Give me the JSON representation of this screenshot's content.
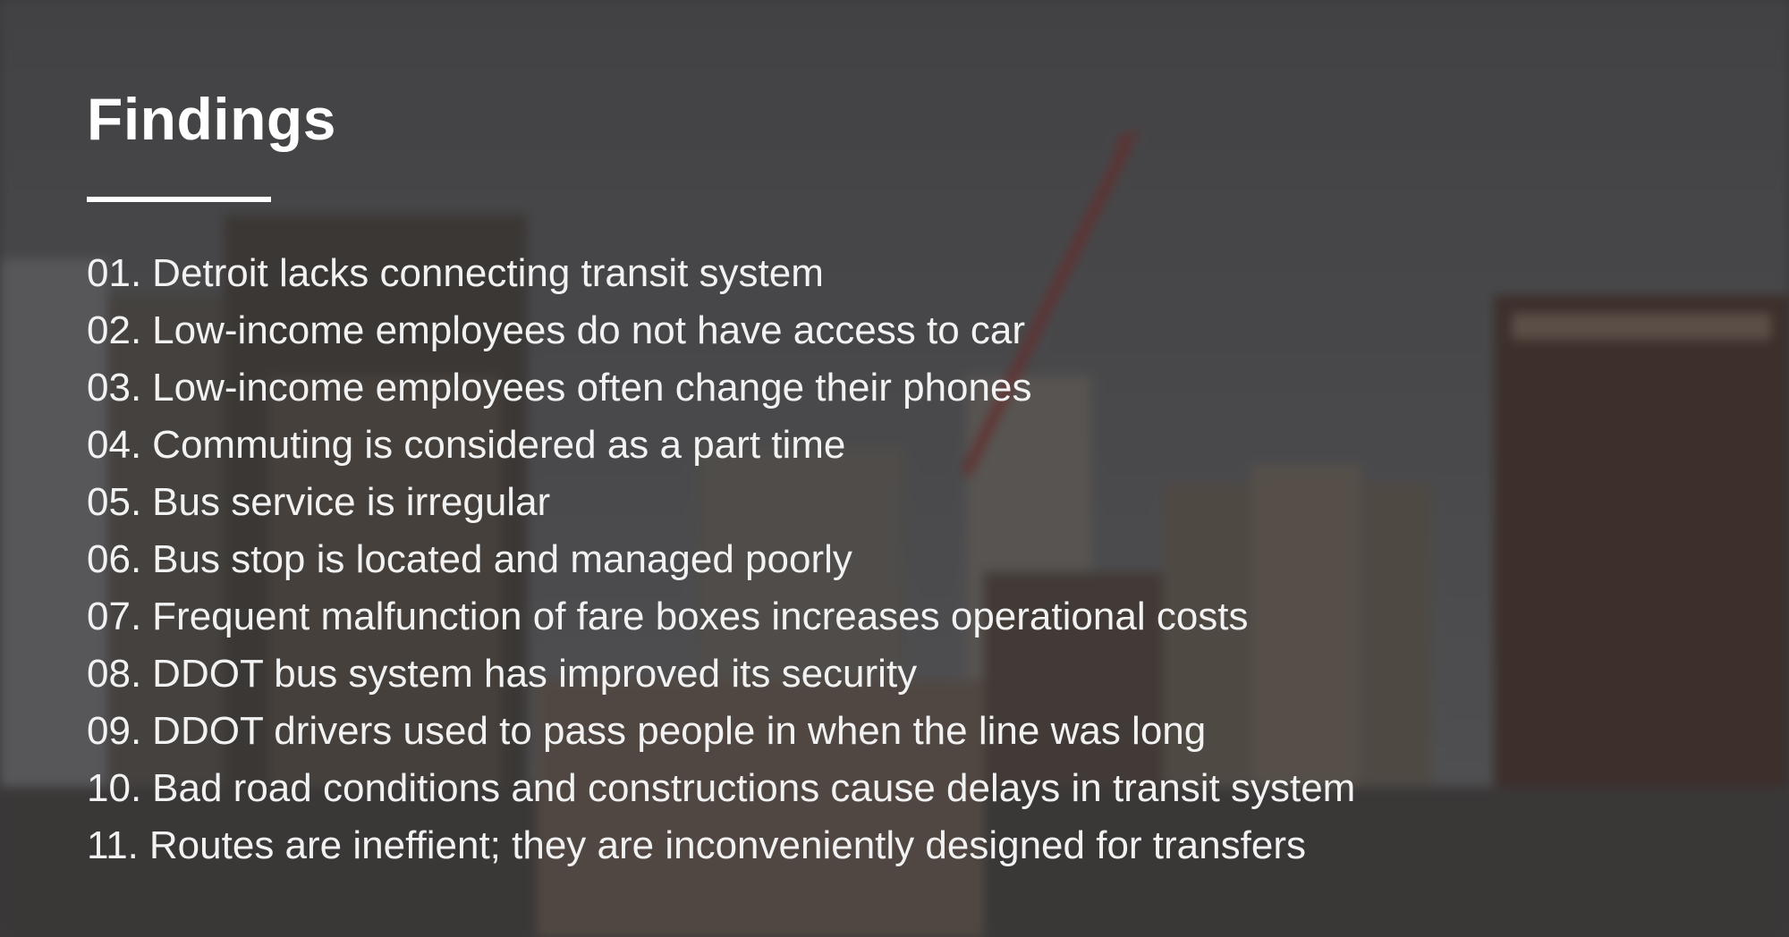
{
  "title": "Findings",
  "background": {
    "description_icon": "blurred-city-skyline-image",
    "sky_color": "#5d5d5f",
    "building_color": "#6b5a4f"
  },
  "findings": [
    {
      "num": "01.",
      "text": "Detroit lacks connecting transit system"
    },
    {
      "num": "02.",
      "text": "Low-income employees do not have access to car"
    },
    {
      "num": "03.",
      "text": "Low-income employees often change their phones"
    },
    {
      "num": "04.",
      "text": "Commuting is considered as a part time"
    },
    {
      "num": "05.",
      "text": "Bus service is irregular"
    },
    {
      "num": "06.",
      "text": "Bus stop is located and managed poorly"
    },
    {
      "num": "07.",
      "text": "Frequent malfunction of fare boxes increases operational costs"
    },
    {
      "num": "08.",
      "text": "DDOT bus system has improved its security"
    },
    {
      "num": "09.",
      "text": "DDOT drivers used to pass people in when the line was long"
    },
    {
      "num": "10.",
      "text": "Bad road conditions and constructions cause delays in transit system"
    },
    {
      "num": "11.",
      "text": "Routes are ineffient; they are inconveniently designed for transfers"
    }
  ]
}
